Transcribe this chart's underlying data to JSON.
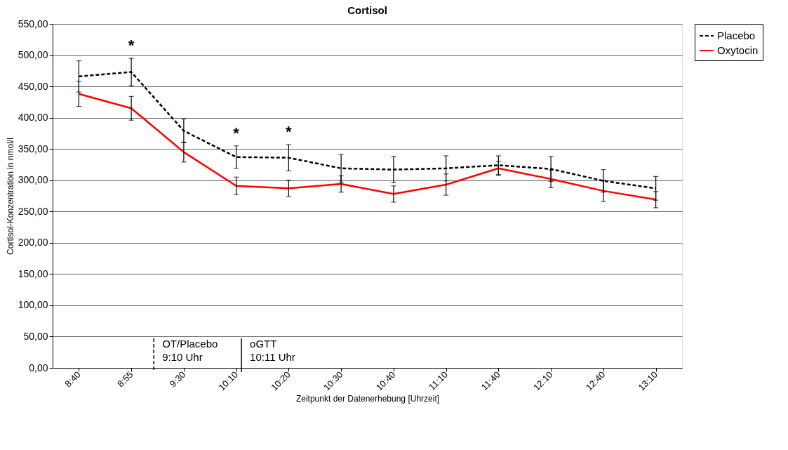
{
  "chart_data": {
    "type": "line",
    "title": "Cortisol",
    "xlabel": "Zeitpunkt der Datenerhebung [Uhrzeit]",
    "ylabel": "Cortisol-Konzentration in nmol/l",
    "categories": [
      "8:40",
      "8:55",
      "9:30",
      "10:10",
      "10:20",
      "10:30",
      "10:40",
      "11:10",
      "11:40",
      "12:10",
      "12:40",
      "13:10"
    ],
    "series": [
      {
        "name": "Placebo",
        "color": "#000000",
        "line_style": "dashed",
        "values": [
          466,
          473,
          379,
          337,
          336,
          319,
          317,
          319,
          324,
          318,
          299,
          287
        ],
        "errors": [
          25,
          22,
          19,
          18,
          21,
          22,
          21,
          20,
          15,
          20,
          18,
          19
        ],
        "value_labels": [
          null,
          "*",
          null,
          "*",
          "*",
          null,
          null,
          null,
          null,
          null,
          null,
          null
        ]
      },
      {
        "name": "Oxytocin",
        "color": "#ff0000",
        "line_style": "solid",
        "values": [
          438,
          415,
          345,
          291,
          287,
          294,
          278,
          293,
          319,
          302,
          283,
          269
        ],
        "errors": [
          20,
          19,
          16,
          14,
          13,
          13,
          13,
          17,
          11,
          14,
          17,
          13
        ]
      }
    ],
    "ylim": [
      0,
      550
    ],
    "yticks": [
      {
        "value": 0,
        "label": "0,00"
      },
      {
        "value": 50,
        "label": "50,00"
      },
      {
        "value": 100,
        "label": "100,00"
      },
      {
        "value": 150,
        "label": "150,00"
      },
      {
        "value": 200,
        "label": "200,00"
      },
      {
        "value": 250,
        "label": "250,00"
      },
      {
        "value": 300,
        "label": "300,00"
      },
      {
        "value": 350,
        "label": "350,00"
      },
      {
        "value": 400,
        "label": "400,00"
      },
      {
        "value": 450,
        "label": "450,00"
      },
      {
        "value": 500,
        "label": "500,00"
      },
      {
        "value": 550,
        "label": "550,00"
      }
    ],
    "grid": "y",
    "legend": "right",
    "marker": "none",
    "ref_lines": [
      {
        "axis": "x",
        "value": "9:10 Uhr",
        "label": "OT/Placebo",
        "line_style": "dashed"
      },
      {
        "axis": "x",
        "value": "10:11 Uhr",
        "label": "oGTT",
        "line_style": "solid"
      }
    ]
  }
}
